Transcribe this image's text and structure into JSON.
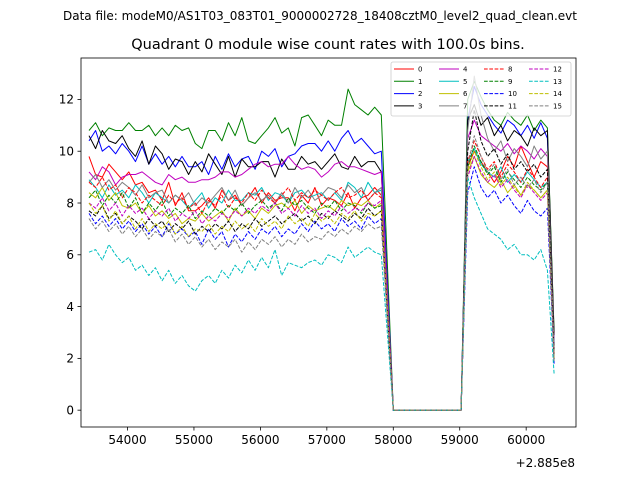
{
  "chart_data": {
    "type": "line",
    "suptitle": "Data file: modeM0/AS1T03_083T01_9000002728_18408cztM0_level2_quad_clean.evt",
    "title": "Quadrant 0 module wise count rates with 100.0s bins.",
    "xlabel": "",
    "ylabel": "",
    "x_offset_label": "+2.885e8",
    "xlim": [
      53300,
      60750
    ],
    "ylim": [
      -0.65,
      13.6
    ],
    "x_ticks": [
      54000,
      55000,
      56000,
      57000,
      58000,
      59000,
      60000
    ],
    "x_tick_labels": [
      "54000",
      "55000",
      "56000",
      "57000",
      "58000",
      "59000",
      "60000"
    ],
    "y_ticks": [
      0,
      2,
      4,
      6,
      8,
      10,
      12
    ],
    "y_tick_labels": [
      "0",
      "2",
      "4",
      "6",
      "8",
      "10",
      "12"
    ],
    "legend_position": "upper right",
    "x": [
      53420,
      53520,
      53620,
      53720,
      53820,
      53920,
      54020,
      54120,
      54220,
      54320,
      54420,
      54520,
      54620,
      54720,
      54820,
      54920,
      55020,
      55120,
      55220,
      55320,
      55420,
      55520,
      55620,
      55720,
      55820,
      55920,
      56020,
      56120,
      56220,
      56320,
      56420,
      56520,
      56620,
      56720,
      56820,
      56920,
      57020,
      57120,
      57220,
      57320,
      57420,
      57520,
      57620,
      57720,
      57820,
      58000,
      58200,
      58400,
      58600,
      58800,
      59020,
      59120,
      59220,
      59320,
      59420,
      59520,
      59620,
      59720,
      59820,
      59920,
      60020,
      60120,
      60220,
      60320,
      60420
    ],
    "series": [
      {
        "name": "0",
        "color": "#ff0000",
        "dash": "solid",
        "values": [
          9.8,
          9.1,
          9.0,
          9.5,
          9.2,
          8.9,
          9.2,
          8.7,
          8.8,
          8.4,
          8.5,
          8.1,
          8.8,
          7.9,
          8.4,
          7.7,
          7.7,
          7.9,
          8.2,
          7.8,
          8.5,
          8.1,
          8.3,
          7.9,
          8.2,
          8.6,
          8.0,
          8.4,
          8.1,
          8.2,
          8.2,
          7.7,
          8.3,
          8.0,
          8.6,
          7.9,
          8.2,
          8.1,
          7.9,
          8.4,
          7.8,
          8.2,
          8.3,
          8.6,
          8.3,
          0,
          0,
          0,
          0,
          0,
          0,
          9.4,
          10.0,
          9.6,
          9.2,
          8.8,
          9.2,
          9.8,
          9.4,
          10.2,
          9.6,
          9.0,
          9.6,
          9.4,
          2.2
        ]
      },
      {
        "name": "1",
        "color": "#008000",
        "dash": "solid",
        "values": [
          10.8,
          11.1,
          10.6,
          10.9,
          10.8,
          10.8,
          11.1,
          10.8,
          10.8,
          11.0,
          10.6,
          10.9,
          10.6,
          11.0,
          10.8,
          10.9,
          10.3,
          10.1,
          10.8,
          10.8,
          10.4,
          11.1,
          10.6,
          11.3,
          10.4,
          10.3,
          10.6,
          10.9,
          11.3,
          10.7,
          10.9,
          10.2,
          11.3,
          11.4,
          11.0,
          10.6,
          11.2,
          11.0,
          11.0,
          12.4,
          11.8,
          11.6,
          11.4,
          11.7,
          11.4,
          0,
          0,
          0,
          0,
          0,
          0,
          12.0,
          12.7,
          12.1,
          11.6,
          11.2,
          11.0,
          11.5,
          11.2,
          11.0,
          11.4,
          10.8,
          11.2,
          10.9,
          3.0
        ]
      },
      {
        "name": "2",
        "color": "#0000ff",
        "dash": "solid",
        "values": [
          10.4,
          10.8,
          10.0,
          10.2,
          9.9,
          10.3,
          10.0,
          9.6,
          10.2,
          9.5,
          9.9,
          9.5,
          9.8,
          9.4,
          9.8,
          9.4,
          9.4,
          9.6,
          9.1,
          9.8,
          9.3,
          9.9,
          9.4,
          9.7,
          9.8,
          9.3,
          10.0,
          9.8,
          10.1,
          9.4,
          9.8,
          9.9,
          10.2,
          10.3,
          10.3,
          10.0,
          10.4,
          10.0,
          10.5,
          10.8,
          10.3,
          10.5,
          10.2,
          9.9,
          10.0,
          0,
          0,
          0,
          0,
          0,
          0,
          11.2,
          12.5,
          11.8,
          11.4,
          11.0,
          10.7,
          11.2,
          11.0,
          10.6,
          11.0,
          10.5,
          11.1,
          10.5,
          2.6
        ]
      },
      {
        "name": "3",
        "color": "#000000",
        "dash": "solid",
        "values": [
          10.6,
          10.1,
          10.8,
          10.4,
          10.3,
          10.6,
          10.1,
          9.8,
          10.4,
          9.5,
          10.2,
          9.9,
          9.3,
          9.7,
          9.6,
          9.1,
          9.6,
          9.2,
          9.9,
          9.5,
          9.1,
          9.8,
          9.0,
          9.7,
          9.4,
          9.4,
          9.6,
          9.6,
          9.0,
          9.7,
          9.3,
          9.3,
          9.8,
          9.5,
          9.6,
          9.3,
          9.6,
          9.9,
          9.4,
          9.3,
          9.8,
          9.4,
          9.6,
          9.6,
          9.2,
          0,
          0,
          0,
          0,
          0,
          0,
          11.2,
          11.8,
          11.0,
          11.3,
          10.6,
          11.0,
          10.4,
          10.8,
          10.6,
          10.2,
          10.9,
          10.6,
          10.8,
          2.9
        ]
      },
      {
        "name": "4",
        "color": "#bf00bf",
        "dash": "solid",
        "values": [
          9.2,
          8.9,
          9.4,
          9.2,
          8.7,
          9.0,
          9.1,
          9.1,
          9.2,
          9.0,
          8.8,
          8.7,
          9.1,
          8.9,
          9.0,
          8.8,
          8.8,
          8.9,
          8.9,
          9.0,
          9.2,
          9.2,
          9.0,
          9.1,
          9.3,
          9.5,
          9.6,
          9.4,
          9.5,
          9.5,
          9.8,
          9.5,
          9.3,
          9.4,
          9.3,
          9.0,
          9.2,
          9.5,
          9.6,
          9.4,
          9.4,
          9.3,
          9.2,
          9.1,
          9.2,
          0,
          0,
          0,
          0,
          0,
          0,
          10.5,
          11.2,
          10.6,
          10.4,
          10.2,
          10.0,
          10.3,
          9.9,
          10.2,
          10.0,
          9.7,
          10.1,
          9.8,
          2.5
        ]
      },
      {
        "name": "5",
        "color": "#00bfbf",
        "dash": "solid",
        "values": [
          8.9,
          8.6,
          8.2,
          8.7,
          8.3,
          8.5,
          8.2,
          8.7,
          8.4,
          8.0,
          8.4,
          8.2,
          8.0,
          8.3,
          8.1,
          7.8,
          8.1,
          8.4,
          7.8,
          8.2,
          8.0,
          8.5,
          8.1,
          8.1,
          8.4,
          8.3,
          8.6,
          8.1,
          8.4,
          8.3,
          8.0,
          8.4,
          8.5,
          8.2,
          8.3,
          8.4,
          8.1,
          8.4,
          8.1,
          8.8,
          8.6,
          8.2,
          8.8,
          8.4,
          8.5,
          0,
          0,
          0,
          0,
          0,
          0,
          9.6,
          10.1,
          9.5,
          9.2,
          9.0,
          9.4,
          8.8,
          9.1,
          8.8,
          9.2,
          8.9,
          8.6,
          8.8,
          2.3
        ]
      },
      {
        "name": "6",
        "color": "#bfbf00",
        "dash": "solid",
        "values": [
          8.4,
          8.2,
          8.6,
          8.1,
          8.4,
          7.9,
          7.8,
          8.0,
          7.6,
          7.9,
          7.5,
          7.7,
          7.4,
          7.6,
          7.2,
          7.4,
          7.3,
          7.6,
          7.3,
          7.5,
          7.7,
          7.3,
          7.8,
          7.5,
          7.7,
          7.4,
          7.8,
          7.6,
          7.9,
          8.0,
          7.8,
          8.1,
          7.6,
          7.9,
          7.7,
          7.8,
          7.9,
          7.7,
          8.1,
          7.9,
          8.0,
          7.9,
          8.1,
          7.8,
          8.0,
          0,
          0,
          0,
          0,
          0,
          0,
          9.2,
          9.8,
          9.1,
          8.8,
          8.6,
          8.9,
          8.4,
          8.7,
          8.3,
          8.7,
          8.5,
          8.2,
          8.5,
          2.1
        ]
      },
      {
        "name": "7",
        "color": "#808080",
        "dash": "solid",
        "values": [
          8.8,
          9.1,
          8.6,
          8.9,
          8.5,
          8.8,
          8.6,
          8.3,
          8.7,
          8.2,
          8.4,
          8.5,
          8.0,
          8.3,
          8.1,
          8.4,
          7.9,
          8.2,
          8.0,
          8.3,
          8.6,
          8.1,
          8.5,
          7.9,
          8.2,
          8.4,
          8.1,
          8.3,
          8.0,
          8.4,
          8.0,
          8.6,
          8.2,
          8.5,
          8.1,
          8.3,
          8.6,
          8.5,
          8.2,
          8.7,
          8.4,
          8.6,
          8.1,
          8.4,
          8.6,
          0,
          0,
          0,
          0,
          0,
          0,
          10.8,
          12.9,
          11.4,
          10.5,
          10.0,
          10.4,
          9.6,
          10.1,
          9.8,
          9.4,
          10.2,
          9.7,
          10.0,
          2.4
        ]
      },
      {
        "name": "8",
        "color": "#ff0000",
        "dash": "dashed",
        "values": [
          8.8,
          8.6,
          9.0,
          8.5,
          8.7,
          8.2,
          8.6,
          8.4,
          8.0,
          8.3,
          8.1,
          7.9,
          8.3,
          8.0,
          8.2,
          7.8,
          8.0,
          7.6,
          8.1,
          7.9,
          8.3,
          7.8,
          8.2,
          8.0,
          8.4,
          8.1,
          8.5,
          8.2,
          8.0,
          8.3,
          8.6,
          8.1,
          8.4,
          8.2,
          8.5,
          8.3,
          8.1,
          8.4,
          8.6,
          8.2,
          8.3,
          8.5,
          8.1,
          8.4,
          8.2,
          0,
          0,
          0,
          0,
          0,
          0,
          9.6,
          10.4,
          9.8,
          9.3,
          9.6,
          9.0,
          9.5,
          9.2,
          8.8,
          9.3,
          9.0,
          8.6,
          9.0,
          2.0
        ]
      },
      {
        "name": "9",
        "color": "#008000",
        "dash": "dashed",
        "values": [
          8.2,
          8.5,
          7.9,
          8.3,
          8.0,
          8.4,
          7.8,
          8.2,
          7.6,
          8.0,
          7.7,
          8.1,
          7.5,
          7.8,
          7.6,
          7.9,
          7.4,
          7.7,
          7.5,
          7.8,
          7.6,
          7.9,
          7.7,
          8.0,
          7.6,
          7.9,
          8.1,
          7.8,
          8.0,
          7.7,
          8.2,
          7.9,
          8.1,
          7.8,
          7.6,
          8.0,
          7.8,
          8.1,
          7.7,
          8.0,
          7.9,
          7.6,
          8.0,
          7.8,
          7.9,
          0,
          0,
          0,
          0,
          0,
          0,
          9.4,
          10.2,
          9.6,
          9.1,
          9.4,
          8.8,
          9.2,
          8.9,
          8.6,
          9.0,
          8.7,
          8.5,
          8.8,
          1.9
        ]
      },
      {
        "name": "10",
        "color": "#0000ff",
        "dash": "dashed",
        "values": [
          7.6,
          7.2,
          7.5,
          7.1,
          7.4,
          7.0,
          7.3,
          6.9,
          7.2,
          6.8,
          7.1,
          6.7,
          7.2,
          6.8,
          7.0,
          6.7,
          6.9,
          6.4,
          7.0,
          6.6,
          6.9,
          6.3,
          6.8,
          6.5,
          6.9,
          6.6,
          7.0,
          6.8,
          7.1,
          6.7,
          7.0,
          6.8,
          7.2,
          6.9,
          7.3,
          7.0,
          7.2,
          6.9,
          7.4,
          7.1,
          7.3,
          7.0,
          7.5,
          7.2,
          7.4,
          0,
          0,
          0,
          0,
          0,
          0,
          8.4,
          9.4,
          8.6,
          8.2,
          8.5,
          8.0,
          8.3,
          7.9,
          7.6,
          8.1,
          7.7,
          7.5,
          7.8,
          1.8
        ]
      },
      {
        "name": "11",
        "color": "#000000",
        "dash": "dashed",
        "values": [
          7.7,
          7.5,
          7.9,
          7.4,
          7.6,
          7.2,
          7.5,
          7.3,
          7.0,
          7.4,
          7.1,
          7.3,
          6.9,
          7.2,
          7.0,
          7.3,
          6.8,
          7.1,
          6.9,
          7.2,
          7.0,
          7.3,
          6.9,
          7.2,
          7.0,
          7.4,
          7.1,
          7.3,
          7.5,
          7.2,
          7.4,
          7.6,
          7.3,
          7.5,
          7.2,
          7.6,
          7.4,
          7.7,
          7.5,
          7.3,
          7.6,
          7.4,
          7.8,
          7.5,
          7.7,
          0,
          0,
          0,
          0,
          0,
          0,
          10.0,
          11.6,
          10.4,
          9.8,
          10.1,
          9.5,
          9.9,
          9.3,
          9.6,
          9.2,
          9.5,
          9.0,
          9.3,
          2.2
        ]
      },
      {
        "name": "12",
        "color": "#bf00bf",
        "dash": "dashed",
        "values": [
          8.0,
          7.8,
          8.2,
          7.7,
          8.0,
          7.5,
          7.9,
          7.6,
          7.8,
          7.4,
          7.7,
          7.5,
          7.8,
          7.3,
          7.6,
          7.4,
          7.7,
          7.2,
          7.5,
          7.3,
          7.6,
          7.4,
          7.7,
          7.5,
          7.8,
          7.6,
          7.9,
          7.7,
          8.0,
          7.6,
          7.8,
          7.5,
          7.9,
          7.6,
          7.8,
          7.4,
          7.7,
          7.5,
          7.9,
          7.6,
          7.8,
          7.7,
          8.0,
          7.9,
          8.1,
          0,
          0,
          0,
          0,
          0,
          0,
          9.0,
          9.8,
          9.2,
          8.8,
          9.1,
          8.6,
          8.9,
          8.5,
          8.2,
          8.7,
          8.4,
          8.1,
          8.4,
          2.0
        ]
      },
      {
        "name": "13",
        "color": "#00bfbf",
        "dash": "dashed",
        "values": [
          6.1,
          6.2,
          5.8,
          6.4,
          6.0,
          5.7,
          5.9,
          5.4,
          5.6,
          5.2,
          5.5,
          5.0,
          5.4,
          4.9,
          5.2,
          4.8,
          4.6,
          5.0,
          5.2,
          4.9,
          5.4,
          5.1,
          5.6,
          5.3,
          5.8,
          5.4,
          5.9,
          5.5,
          6.2,
          5.2,
          5.7,
          5.6,
          5.5,
          5.7,
          5.8,
          5.6,
          6.0,
          5.9,
          5.7,
          6.3,
          5.9,
          6.1,
          6.3,
          6.1,
          6.0,
          0,
          0,
          0,
          0,
          0,
          0,
          9.0,
          8.2,
          7.6,
          7.0,
          6.8,
          6.6,
          6.2,
          6.4,
          6.0,
          6.0,
          5.8,
          6.2,
          5.4,
          1.4
        ]
      },
      {
        "name": "14",
        "color": "#bfbf00",
        "dash": "dashed",
        "values": [
          8.0,
          7.6,
          7.9,
          7.3,
          7.7,
          7.2,
          7.5,
          7.0,
          7.4,
          6.9,
          7.2,
          7.0,
          7.3,
          6.8,
          7.1,
          6.7,
          7.0,
          6.9,
          7.2,
          6.8,
          7.1,
          6.9,
          7.3,
          7.0,
          7.2,
          6.9,
          7.4,
          7.1,
          7.3,
          7.0,
          7.5,
          7.2,
          7.4,
          7.1,
          7.6,
          7.3,
          7.5,
          7.2,
          7.6,
          7.4,
          7.7,
          7.3,
          7.6,
          7.5,
          7.7,
          0,
          0,
          0,
          0,
          0,
          0,
          9.3,
          10.0,
          9.4,
          8.9,
          9.2,
          8.7,
          9.0,
          8.6,
          8.3,
          8.8,
          8.5,
          8.2,
          8.5,
          2.0
        ]
      },
      {
        "name": "15",
        "color": "#808080",
        "dash": "dashed",
        "values": [
          7.4,
          7.0,
          7.3,
          6.9,
          7.2,
          6.8,
          7.1,
          6.7,
          7.0,
          6.6,
          6.9,
          6.7,
          7.0,
          6.5,
          6.8,
          6.4,
          6.7,
          6.3,
          6.6,
          6.2,
          6.5,
          6.3,
          6.6,
          6.1,
          6.5,
          6.2,
          6.6,
          6.4,
          6.7,
          6.3,
          6.6,
          6.4,
          6.8,
          6.5,
          6.7,
          6.6,
          6.9,
          6.7,
          7.0,
          6.8,
          7.1,
          6.9,
          7.2,
          7.0,
          7.1,
          0,
          0,
          0,
          0,
          0,
          0,
          9.4,
          10.6,
          9.8,
          9.2,
          9.5,
          8.9,
          9.3,
          8.7,
          9.0,
          8.6,
          8.9,
          8.4,
          8.8,
          1.9
        ]
      }
    ]
  }
}
